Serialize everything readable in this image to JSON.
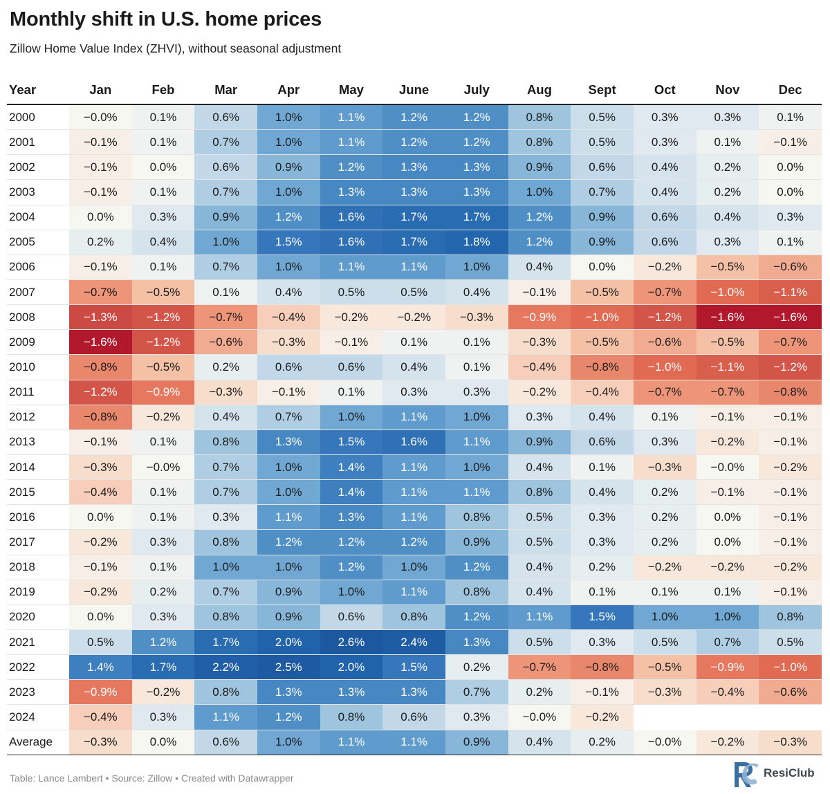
{
  "title": "Monthly shift in U.S. home prices",
  "subtitle": "Zillow Home Value Index (ZHVI), without seasonal adjustment",
  "footer": "Table: Lance Lambert • Source: Zillow • Created with Datawrapper",
  "logo": {
    "text": "ResiClub",
    "icon": "rc-logo-icon"
  },
  "colors": {
    "negative_max": "#b2182b",
    "neutral": "#f7f7f2",
    "positive_max": "#2166ac"
  },
  "chart_data": {
    "type": "heatmap",
    "title": "Monthly shift in U.S. home prices",
    "subtitle": "Zillow Home Value Index (ZHVI), without seasonal adjustment",
    "row_header": "Year",
    "columns": [
      "Jan",
      "Feb",
      "Mar",
      "Apr",
      "May",
      "June",
      "July",
      "Aug",
      "Sept",
      "Oct",
      "Nov",
      "Dec"
    ],
    "rows": [
      {
        "label": "2000",
        "values": [
          "−0.0%",
          "0.1%",
          "0.6%",
          "1.0%",
          "1.1%",
          "1.2%",
          "1.2%",
          "0.8%",
          "0.5%",
          "0.3%",
          "0.3%",
          "0.1%"
        ]
      },
      {
        "label": "2001",
        "values": [
          "−0.1%",
          "0.1%",
          "0.7%",
          "1.0%",
          "1.1%",
          "1.2%",
          "1.2%",
          "0.8%",
          "0.5%",
          "0.3%",
          "0.1%",
          "−0.1%"
        ]
      },
      {
        "label": "2002",
        "values": [
          "−0.1%",
          "0.0%",
          "0.6%",
          "0.9%",
          "1.2%",
          "1.3%",
          "1.3%",
          "0.9%",
          "0.6%",
          "0.4%",
          "0.2%",
          "0.0%"
        ]
      },
      {
        "label": "2003",
        "values": [
          "−0.1%",
          "0.1%",
          "0.7%",
          "1.0%",
          "1.3%",
          "1.3%",
          "1.3%",
          "1.0%",
          "0.7%",
          "0.4%",
          "0.2%",
          "0.0%"
        ]
      },
      {
        "label": "2004",
        "values": [
          "0.0%",
          "0.3%",
          "0.9%",
          "1.2%",
          "1.6%",
          "1.7%",
          "1.7%",
          "1.2%",
          "0.9%",
          "0.6%",
          "0.4%",
          "0.3%"
        ]
      },
      {
        "label": "2005",
        "values": [
          "0.2%",
          "0.4%",
          "1.0%",
          "1.5%",
          "1.6%",
          "1.7%",
          "1.8%",
          "1.2%",
          "0.9%",
          "0.6%",
          "0.3%",
          "0.1%"
        ]
      },
      {
        "label": "2006",
        "values": [
          "−0.1%",
          "0.1%",
          "0.7%",
          "1.0%",
          "1.1%",
          "1.1%",
          "1.0%",
          "0.4%",
          "0.0%",
          "−0.2%",
          "−0.5%",
          "−0.6%"
        ]
      },
      {
        "label": "2007",
        "values": [
          "−0.7%",
          "−0.5%",
          "0.1%",
          "0.4%",
          "0.5%",
          "0.5%",
          "0.4%",
          "−0.1%",
          "−0.5%",
          "−0.7%",
          "−1.0%",
          "−1.1%"
        ]
      },
      {
        "label": "2008",
        "values": [
          "−1.3%",
          "−1.2%",
          "−0.7%",
          "−0.4%",
          "−0.2%",
          "−0.2%",
          "−0.3%",
          "−0.9%",
          "−1.0%",
          "−1.2%",
          "−1.6%",
          "−1.6%"
        ]
      },
      {
        "label": "2009",
        "values": [
          "−1.6%",
          "−1.2%",
          "−0.6%",
          "−0.3%",
          "−0.1%",
          "0.1%",
          "0.1%",
          "−0.3%",
          "−0.5%",
          "−0.6%",
          "−0.5%",
          "−0.7%"
        ]
      },
      {
        "label": "2010",
        "values": [
          "−0.8%",
          "−0.5%",
          "0.2%",
          "0.6%",
          "0.6%",
          "0.4%",
          "0.1%",
          "−0.4%",
          "−0.8%",
          "−1.0%",
          "−1.1%",
          "−1.2%"
        ]
      },
      {
        "label": "2011",
        "values": [
          "−1.2%",
          "−0.9%",
          "−0.3%",
          "−0.1%",
          "0.1%",
          "0.3%",
          "0.3%",
          "−0.2%",
          "−0.4%",
          "−0.7%",
          "−0.7%",
          "−0.8%"
        ]
      },
      {
        "label": "2012",
        "values": [
          "−0.8%",
          "−0.2%",
          "0.4%",
          "0.7%",
          "1.0%",
          "1.1%",
          "1.0%",
          "0.3%",
          "0.4%",
          "0.1%",
          "−0.1%",
          "−0.1%"
        ]
      },
      {
        "label": "2013",
        "values": [
          "−0.1%",
          "0.1%",
          "0.8%",
          "1.3%",
          "1.5%",
          "1.6%",
          "1.1%",
          "0.9%",
          "0.6%",
          "0.3%",
          "−0.2%",
          "−0.1%"
        ]
      },
      {
        "label": "2014",
        "values": [
          "−0.3%",
          "−0.0%",
          "0.7%",
          "1.0%",
          "1.4%",
          "1.1%",
          "1.0%",
          "0.4%",
          "0.1%",
          "−0.3%",
          "−0.0%",
          "−0.2%"
        ]
      },
      {
        "label": "2015",
        "values": [
          "−0.4%",
          "0.1%",
          "0.7%",
          "1.0%",
          "1.4%",
          "1.1%",
          "1.1%",
          "0.8%",
          "0.4%",
          "0.2%",
          "−0.1%",
          "−0.1%"
        ]
      },
      {
        "label": "2016",
        "values": [
          "0.0%",
          "0.1%",
          "0.3%",
          "1.1%",
          "1.3%",
          "1.1%",
          "0.8%",
          "0.5%",
          "0.3%",
          "0.2%",
          "0.0%",
          "−0.1%"
        ]
      },
      {
        "label": "2017",
        "values": [
          "−0.2%",
          "0.3%",
          "0.8%",
          "1.2%",
          "1.2%",
          "1.2%",
          "0.9%",
          "0.5%",
          "0.3%",
          "0.2%",
          "0.0%",
          "−0.1%"
        ]
      },
      {
        "label": "2018",
        "values": [
          "−0.1%",
          "0.1%",
          "1.0%",
          "1.0%",
          "1.2%",
          "1.0%",
          "1.2%",
          "0.4%",
          "0.2%",
          "−0.2%",
          "−0.2%",
          "−0.2%"
        ]
      },
      {
        "label": "2019",
        "values": [
          "−0.2%",
          "0.2%",
          "0.7%",
          "0.9%",
          "1.0%",
          "1.1%",
          "0.8%",
          "0.4%",
          "0.1%",
          "0.1%",
          "0.1%",
          "−0.1%"
        ]
      },
      {
        "label": "2020",
        "values": [
          "0.0%",
          "0.3%",
          "0.8%",
          "0.9%",
          "0.6%",
          "0.8%",
          "1.2%",
          "1.1%",
          "1.5%",
          "1.0%",
          "1.0%",
          "0.8%"
        ]
      },
      {
        "label": "2021",
        "values": [
          "0.5%",
          "1.2%",
          "1.7%",
          "2.0%",
          "2.6%",
          "2.4%",
          "1.3%",
          "0.5%",
          "0.3%",
          "0.5%",
          "0.7%",
          "0.5%"
        ]
      },
      {
        "label": "2022",
        "values": [
          "1.4%",
          "1.7%",
          "2.2%",
          "2.5%",
          "2.0%",
          "1.5%",
          "0.2%",
          "−0.7%",
          "−0.8%",
          "−0.5%",
          "−0.9%",
          "−1.0%"
        ]
      },
      {
        "label": "2023",
        "values": [
          "−0.9%",
          "−0.2%",
          "0.8%",
          "1.3%",
          "1.3%",
          "1.3%",
          "0.7%",
          "0.2%",
          "−0.1%",
          "−0.3%",
          "−0.4%",
          "−0.6%"
        ]
      },
      {
        "label": "2024",
        "values": [
          "−0.4%",
          "0.3%",
          "1.1%",
          "1.2%",
          "0.8%",
          "0.6%",
          "0.3%",
          "−0.0%",
          "−0.2%",
          "",
          "",
          ""
        ]
      }
    ],
    "summary_row": {
      "label": "Average",
      "values": [
        "−0.3%",
        "0.0%",
        "0.6%",
        "1.0%",
        "1.1%",
        "1.1%",
        "0.9%",
        "0.4%",
        "0.2%",
        "−0.0%",
        "−0.2%",
        "−0.3%"
      ]
    }
  }
}
